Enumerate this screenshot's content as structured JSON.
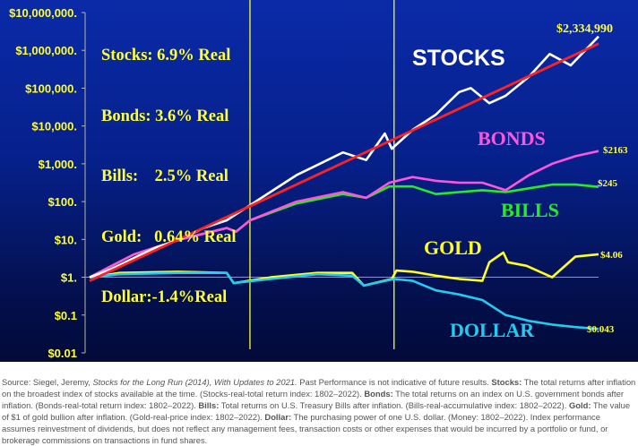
{
  "chart_data": {
    "type": "line",
    "yscale": "log",
    "ylim": [
      0.01,
      10000000
    ],
    "xlim": [
      1802,
      2022
    ],
    "y_ticks": [
      "$10,000,000.",
      "$1,000,000.",
      "$100,000.",
      "$10,000.",
      "$1,000.",
      "$100.",
      "$10.",
      "$1.",
      "$0.1",
      "$0.01"
    ],
    "y_tick_values": [
      10000000,
      1000000,
      100000,
      10000,
      1000,
      100,
      10,
      1,
      0.1,
      0.01
    ],
    "x_ticks": [
      "1802",
      "1811",
      "1821",
      "1831",
      "1841",
      "1851",
      "1861",
      "1871",
      "1881",
      "1891",
      "1901",
      "1911",
      "1921",
      "1931",
      "1941",
      "1951",
      "1961",
      "1971",
      "1981",
      "1991",
      "2001",
      "2011",
      "2021"
    ],
    "vertical_markers": [
      1871,
      1933
    ],
    "legend_lines": [
      "Stocks: 6.9% Real",
      "Bonds: 3.6% Real",
      "Bills:    2.5% Real",
      "Gold:   0.64% Real",
      "Dollar:-1.4%Real"
    ],
    "series": [
      {
        "name": "STOCKS",
        "color": "#ffffff",
        "end_label": "$2,334,990",
        "x": [
          1802,
          1811,
          1821,
          1831,
          1841,
          1851,
          1861,
          1871,
          1881,
          1891,
          1901,
          1911,
          1921,
          1929,
          1932,
          1941,
          1951,
          1961,
          1966,
          1974,
          1981,
          1991,
          2000,
          2009,
          2021
        ],
        "y": [
          1,
          1.6,
          3.2,
          6.3,
          10,
          20,
          32,
          80,
          200,
          500,
          1000,
          2000,
          1260,
          6300,
          2500,
          7900,
          20000,
          79000,
          100000,
          40000,
          63000,
          200000,
          800000,
          400000,
          2334990
        ]
      },
      {
        "name": "BONDS",
        "color": "#ff55dd",
        "end_label": "$2163",
        "x": [
          1802,
          1821,
          1841,
          1861,
          1865,
          1871,
          1891,
          1911,
          1921,
          1931,
          1941,
          1951,
          1961,
          1971,
          1981,
          1991,
          2001,
          2011,
          2021
        ],
        "y": [
          1,
          4,
          10,
          20,
          16,
          32,
          100,
          178,
          126,
          316,
          447,
          355,
          316,
          316,
          200,
          500,
          1000,
          1585,
          2163
        ]
      },
      {
        "name": "BILLS",
        "color": "#22ee22",
        "end_label": "$245",
        "x": [
          1802,
          1821,
          1841,
          1861,
          1865,
          1871,
          1891,
          1911,
          1921,
          1931,
          1941,
          1951,
          1961,
          1971,
          1981,
          1991,
          2001,
          2011,
          2021
        ],
        "y": [
          1,
          4,
          10,
          20,
          16,
          32,
          89,
          158,
          126,
          251,
          251,
          158,
          178,
          200,
          178,
          224,
          282,
          282,
          245
        ]
      },
      {
        "name": "GOLD",
        "color": "#ffff22",
        "end_label": "$4.06",
        "x": [
          1802,
          1815,
          1840,
          1861,
          1864,
          1880,
          1900,
          1915,
          1920,
          1932,
          1934,
          1941,
          1951,
          1961,
          1971,
          1974,
          1980,
          1982,
          1990,
          2001,
          2011,
          2021
        ],
        "y": [
          1,
          1.3,
          1.4,
          1.3,
          0.7,
          1.0,
          1.3,
          1.3,
          0.6,
          0.9,
          1.5,
          1.4,
          1.1,
          0.9,
          0.8,
          2.5,
          4.5,
          2.5,
          2.0,
          1.0,
          3.5,
          4.06
        ]
      },
      {
        "name": "DOLLAR",
        "color": "#22ccee",
        "end_label": "$0.043",
        "x": [
          1802,
          1815,
          1840,
          1861,
          1864,
          1880,
          1900,
          1915,
          1920,
          1933,
          1941,
          1951,
          1961,
          1971,
          1981,
          1991,
          2001,
          2011,
          2021
        ],
        "y": [
          1,
          1.2,
          1.3,
          1.3,
          0.7,
          0.9,
          1.2,
          1.1,
          0.6,
          0.9,
          0.8,
          0.45,
          0.35,
          0.25,
          0.1,
          0.07,
          0.056,
          0.048,
          0.043
        ]
      }
    ],
    "trend": {
      "color": "#ff2222",
      "x": [
        1802,
        2021
      ],
      "y": [
        0.8,
        1500000
      ]
    }
  },
  "footnote": {
    "p1": "Source: Siegel, Jeremy, ",
    "p1_italic": "Stocks for the Long Run (2014), With Updates to 2021.",
    "p2": " Past Performance is not indicative of future results. ",
    "stocks_label": "Stocks:",
    "stocks_text": " The total returns after inflation on the broadest index of stocks available at the time. (Stocks-real-total return index: 1802–2022). ",
    "bonds_label": "Bonds:",
    "bonds_text": " The total returns on an index on U.S. government bonds after inflation. (Bonds-real-total return index: 1802–2022). ",
    "bills_label": "Bills:",
    "bills_text": " Total returns on U.S. Treasury Bills after inflation. (Bills-real-accumulative index: 1802–2022). ",
    "gold_label": "Gold:",
    "gold_text": " The value of $1 of gold bullion after inflation. (Gold-real-price index: 1802–2022). ",
    "dollar_label": "Dollar:",
    "dollar_text": " The purchasing power of one U.S. dollar. (Money: 1802–2022). Index performance assumes reinvestment of dividends, but does not reflect any management fees, transaction costs or other expenses that would be incurred by a portfolio or fund, or brokerage commissions on transactions in fund shares."
  }
}
